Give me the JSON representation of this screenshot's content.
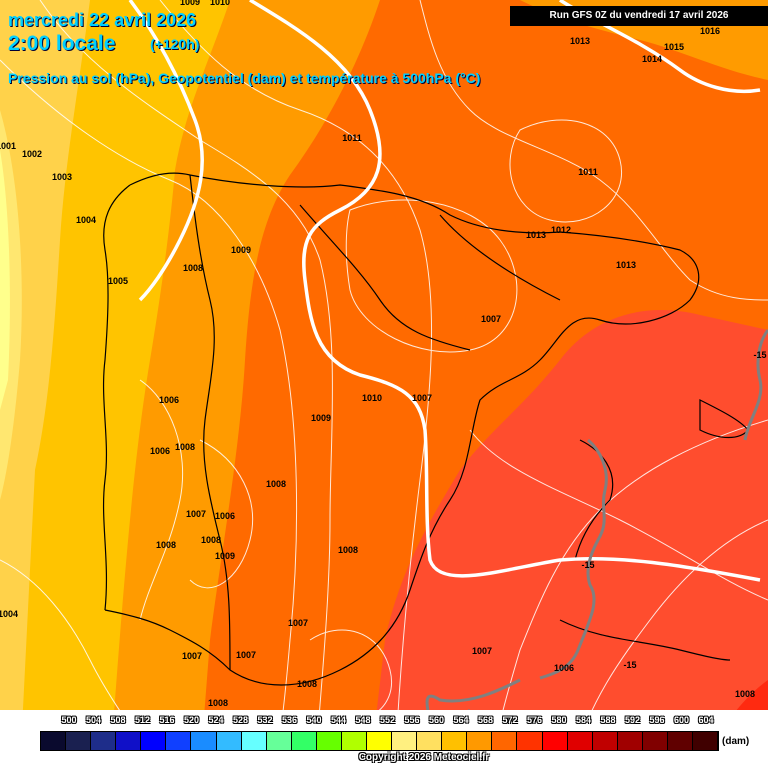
{
  "header": {
    "date_line": "mercredi 22 avril 2026",
    "time_line": "2:00 locale",
    "lead": "(+120h)",
    "subtitle": "Pression au sol (hPa), Geopotentiel (dam) et température à 500hPa (°C)",
    "run": "Run GFS 0Z du vendredi 17 avril 2026"
  },
  "legend": {
    "unit": "(dam)",
    "labels": [
      "500",
      "504",
      "508",
      "512",
      "516",
      "520",
      "524",
      "528",
      "532",
      "536",
      "540",
      "544",
      "548",
      "552",
      "556",
      "560",
      "564",
      "568",
      "572",
      "576",
      "580",
      "584",
      "588",
      "592",
      "596",
      "600",
      "604"
    ],
    "colors": [
      "#0a0a2e",
      "#1a2050",
      "#1e2d8a",
      "#1010c8",
      "#0000ff",
      "#1040ff",
      "#1a8cff",
      "#33bbff",
      "#66ffff",
      "#66ff99",
      "#33ff66",
      "#66ff00",
      "#b0ff00",
      "#ffff00",
      "#fff080",
      "#ffe060",
      "#ffc000",
      "#ff9900",
      "#ff6600",
      "#ff3300",
      "#ff0000",
      "#e00000",
      "#c00000",
      "#a00000",
      "#800000",
      "#600000",
      "#400000"
    ]
  },
  "pressure_labels": [
    "1009",
    "1010",
    "1013",
    "1015",
    "1016",
    "1014",
    "1001",
    "1002",
    "1003",
    "1004",
    "1005",
    "1008",
    "1009",
    "1011",
    "1013",
    "1012",
    "1013",
    "1011",
    "1007",
    "1006",
    "1006",
    "1008",
    "1009",
    "1010",
    "1007",
    "1008",
    "1007",
    "1006",
    "1008",
    "1008",
    "1009",
    "1008",
    "1007",
    "1007",
    "1007",
    "1008",
    "1008",
    "1007",
    "1006",
    "1008",
    "1004"
  ],
  "temp_labels": [
    "-15",
    "-15",
    "-15"
  ],
  "copyright": "Copyright 2026 Meteociel.fr"
}
